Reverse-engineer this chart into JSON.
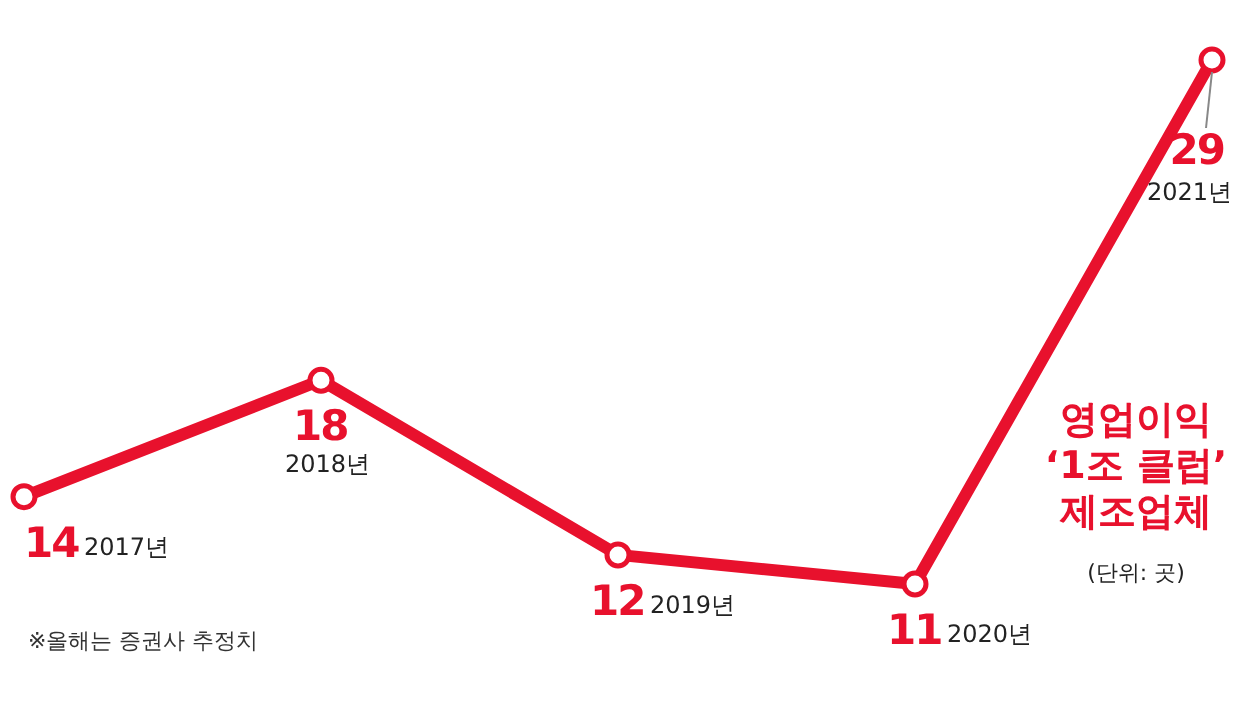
{
  "chart_data": {
    "type": "line",
    "title": "영업이익\n‘1조 클럽’\n제조업체",
    "subtitle": "(단위: 곳)",
    "categories": [
      "2017년",
      "2018년",
      "2019년",
      "2020년",
      "2021년"
    ],
    "series": [
      {
        "color": "#e8112d",
        "values": [
          14,
          18,
          12,
          11,
          29
        ]
      }
    ],
    "data_labels": true,
    "marker": "circle",
    "line_style": "solid",
    "annotations": [
      "※올해는 증권사 추정치"
    ]
  }
}
